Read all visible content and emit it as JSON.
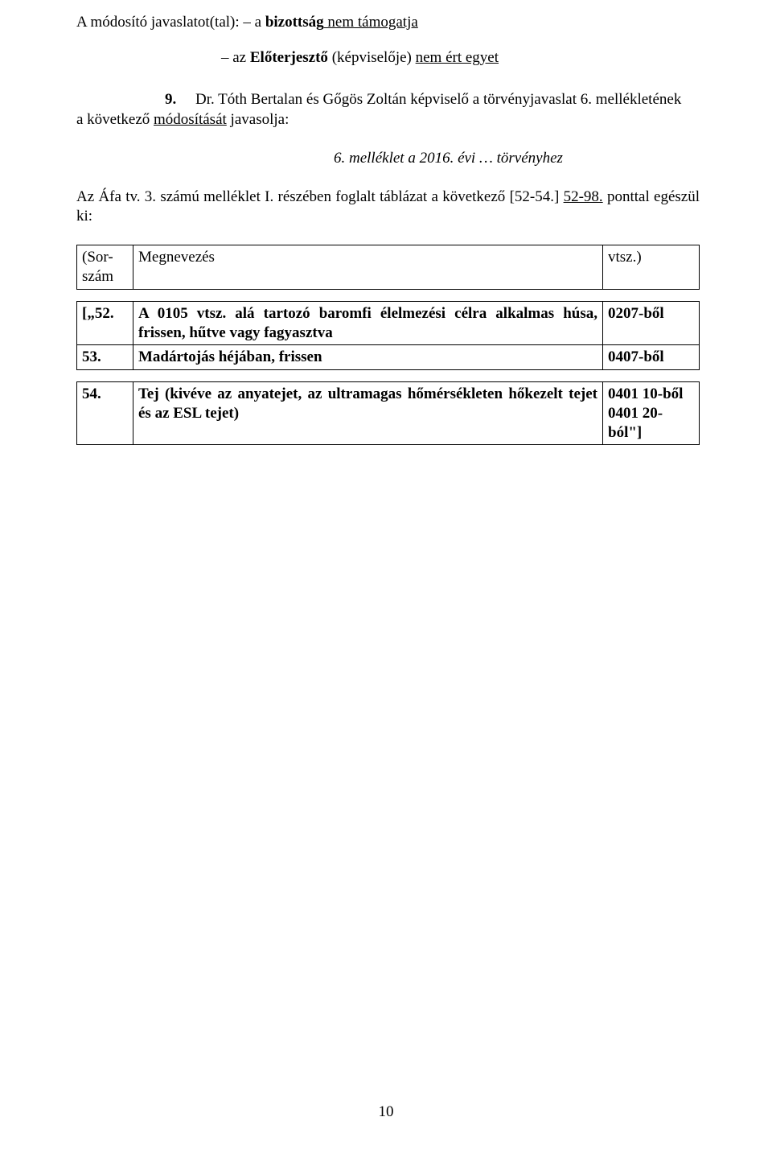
{
  "intro": {
    "line1_prefix": "A módosító javaslatot(tal): – a ",
    "line1_bold": "bizottság",
    "line1_underline": " nem támogatja"
  },
  "sub_line": {
    "prefix": "– az ",
    "bold": "Előterjesztő",
    "mid": " (képviselője) ",
    "underline": "nem ért egyet"
  },
  "point9": {
    "num": "9.",
    "text1": "Dr. Tóth Bertalan és Gőgös Zoltán képviselő a törvényjavaslat 6. mellékletének",
    "cont": "a következő ",
    "cont_underline": "módosítását",
    "cont_suffix": " javasolja:"
  },
  "citation": "6. melléklet a 2016. évi … törvényhez",
  "body": {
    "prefix": "Az Áfa tv. 3. számú melléklet I. részében foglalt táblázat a következő [52-54.] ",
    "underline": "52-98.",
    "suffix": " ponttal egészül ki:"
  },
  "table1": {
    "r1c1": "(Sor-\nszám",
    "r1c2": "Megnevezés",
    "r1c3": "vtsz.)"
  },
  "table2": {
    "r1c1": "[„52.",
    "r1c2": "A 0105 vtsz. alá tartozó baromfi élelmezési célra alkalmas húsa, frissen, hűtve vagy fagyasztva",
    "r1c3": "0207-ből",
    "r2c1": "53.",
    "r2c2": "Madártojás héjában, frissen",
    "r2c3": "0407-ből"
  },
  "table3": {
    "r1c1": "54.",
    "r1c2": "Tej (kivéve az anyatejet, az ultramagas hőmérsékleten hőkezelt tejet és az ESL tejet)",
    "r1c3": "0401 10-ből\n0401 20-ból\"]"
  },
  "page_number": "10"
}
